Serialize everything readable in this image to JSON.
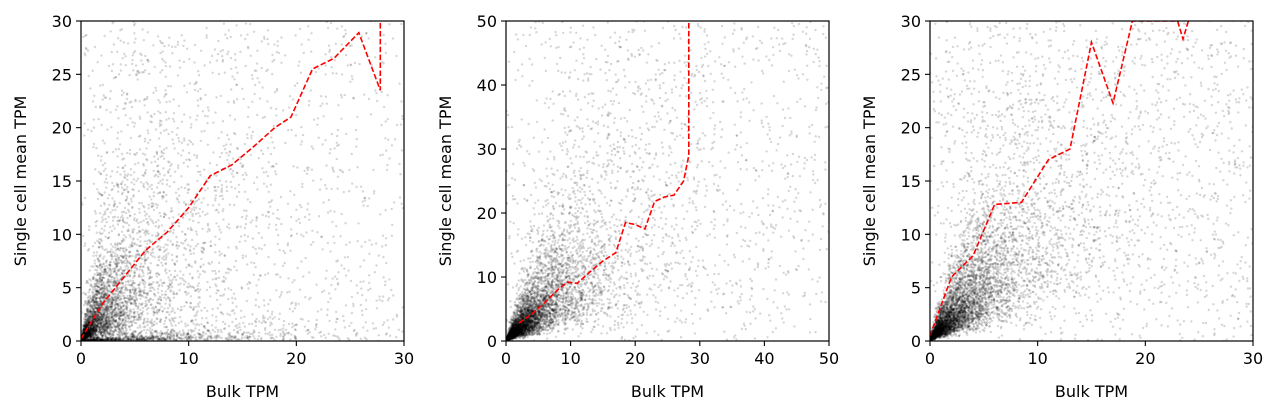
{
  "chart_data": [
    {
      "type": "scatter",
      "xlabel": "Bulk TPM",
      "ylabel": "Single cell mean TPM",
      "xlim": [
        0,
        30
      ],
      "ylim": [
        0,
        30
      ],
      "xticks": [
        0,
        10,
        20,
        30
      ],
      "yticks": [
        0,
        5,
        10,
        15,
        20,
        25,
        30
      ],
      "grid": false,
      "point_color": "#000000",
      "trend": {
        "style": "dashed",
        "color": "#ff0000",
        "x": [
          0,
          2,
          4,
          6,
          8,
          10,
          12,
          14,
          16,
          18,
          19.5,
          21.5,
          23.5,
          25.8,
          27.8,
          27.8
        ],
        "y": [
          0.2,
          3.5,
          6,
          8.5,
          10.2,
          12.5,
          15.5,
          16.5,
          18.2,
          20,
          21,
          25.5,
          26.5,
          28.9,
          23.5,
          30
        ]
      },
      "scatter": {
        "n_points": 6000,
        "seed": 11,
        "opacity": 0.16,
        "components": [
          {
            "w": 0.3,
            "xdist": "exp",
            "xscale": 2.0,
            "ratio_mu": 0.6,
            "ratio_sd": 0.7,
            "yadd": 0.2
          },
          {
            "w": 0.18,
            "xdist": "exp",
            "xscale": 8.0,
            "ratio_mu": -3.0,
            "ratio_sd": 1.0,
            "yadd": 0.05
          },
          {
            "w": 0.36,
            "xdist": "exp",
            "xscale": 6.0,
            "ratio_mu": 0.0,
            "ratio_sd": 0.8,
            "yadd": 0.3
          },
          {
            "w": 0.16,
            "xdist": "uniform",
            "xmax": 30,
            "ydist": "uniform",
            "ymax": 30
          }
        ]
      }
    },
    {
      "type": "scatter",
      "xlabel": "Bulk TPM",
      "ylabel": "Single cell mean TPM",
      "xlim": [
        0,
        50
      ],
      "ylim": [
        0,
        50
      ],
      "xticks": [
        0,
        10,
        20,
        30,
        40,
        50
      ],
      "yticks": [
        0,
        10,
        20,
        30,
        40,
        50
      ],
      "grid": false,
      "point_color": "#000000",
      "trend": {
        "style": "dashed",
        "color": "#ff0000",
        "x": [
          2,
          4,
          6,
          8,
          9.5,
          11,
          13,
          15,
          17,
          18.5,
          20,
          21.5,
          23,
          24.5,
          26,
          27.5,
          28.3,
          28.3
        ],
        "y": [
          2.8,
          4.2,
          6,
          8,
          9.2,
          9,
          10.8,
          12.5,
          13.8,
          18.5,
          18.2,
          17.5,
          21.8,
          22.5,
          22.8,
          25,
          29,
          50
        ]
      },
      "scatter": {
        "n_points": 6500,
        "seed": 23,
        "opacity": 0.16,
        "components": [
          {
            "w": 0.48,
            "xdist": "exp",
            "xscale": 4.0,
            "xadd": 0.3,
            "ratio_mu": 0.0,
            "ratio_sd": 0.55,
            "yadd": 0.3
          },
          {
            "w": 0.36,
            "xdist": "exp",
            "xscale": 11.0,
            "ratio_mu": -0.2,
            "ratio_sd": 0.75,
            "yadd": 0.5
          },
          {
            "w": 0.16,
            "xdist": "uniform",
            "xmax": 50,
            "ydist": "uniform",
            "ymax": 50
          }
        ]
      }
    },
    {
      "type": "scatter",
      "xlabel": "Bulk TPM",
      "ylabel": "Single cell mean TPM",
      "xlim": [
        0,
        30
      ],
      "ylim": [
        0,
        30
      ],
      "xticks": [
        0,
        10,
        20,
        30
      ],
      "yticks": [
        0,
        5,
        10,
        15,
        20,
        25,
        30
      ],
      "grid": false,
      "point_color": "#000000",
      "trend": {
        "style": "dashed",
        "color": "#ff0000",
        "x": [
          0,
          2,
          4,
          6,
          8.5,
          11,
          13,
          15,
          17,
          18.8,
          23,
          23.5,
          24
        ],
        "y": [
          0.5,
          6,
          8,
          12.8,
          13,
          17,
          18,
          28,
          22.3,
          30,
          30,
          28.3,
          30
        ]
      },
      "scatter": {
        "n_points": 7000,
        "seed": 37,
        "opacity": 0.16,
        "components": [
          {
            "w": 0.44,
            "xdist": "exp",
            "xscale": 3.0,
            "xadd": 0.1,
            "ratio_mu": 0.1,
            "ratio_sd": 0.6,
            "yadd": 0.3
          },
          {
            "w": 0.38,
            "xdist": "exp",
            "xscale": 8.0,
            "ratio_mu": 0.0,
            "ratio_sd": 0.7,
            "yadd": 0.5
          },
          {
            "w": 0.18,
            "xdist": "uniform",
            "xmax": 30,
            "ydist": "uniform",
            "ymax": 30
          }
        ]
      }
    }
  ]
}
